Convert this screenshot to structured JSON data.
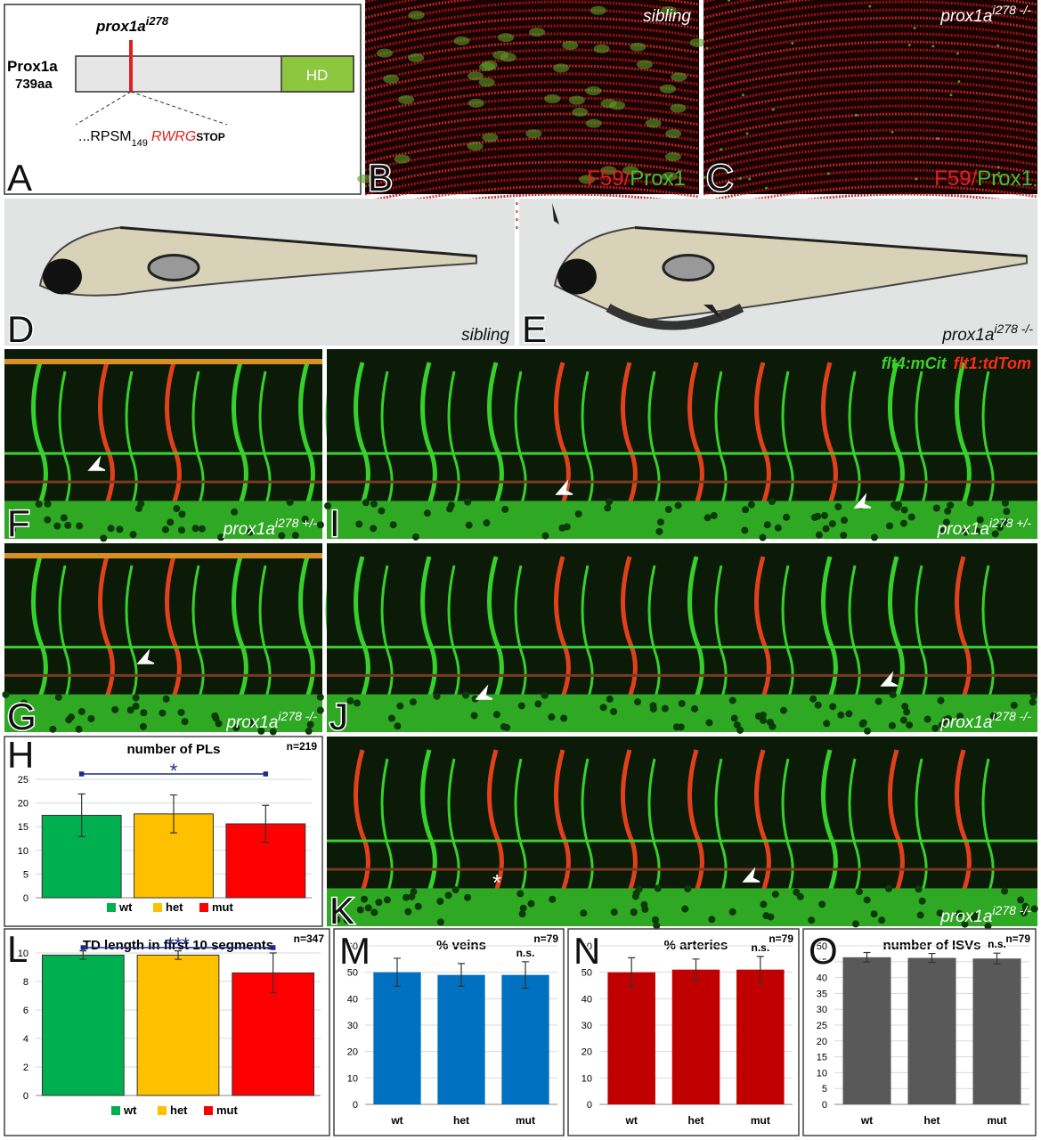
{
  "panel_labels": [
    "A",
    "B",
    "C",
    "D",
    "E",
    "F",
    "G",
    "H",
    "I",
    "J",
    "K",
    "L",
    "M",
    "N",
    "O"
  ],
  "panels": {
    "A": {
      "protein": "Prox1a",
      "length": "739aa",
      "allele": "prox1a",
      "allele_sup": "i278",
      "domain": "HD",
      "seq_prefix": "...RPSM",
      "seq_sub": "149",
      "seq_mut": "RWRG",
      "seq_stop": "STOP"
    },
    "B": {
      "caption": "sibling",
      "stain_red": "F59",
      "stain_sep": "/",
      "stain_green": "Prox1"
    },
    "C": {
      "caption": "prox1a",
      "caption_sup": "i278 -/-",
      "stain_red": "F59",
      "stain_sep": "/",
      "stain_green": "Prox1"
    },
    "D": {
      "caption": "sibling"
    },
    "E": {
      "caption": "prox1a",
      "caption_sup": "i278 -/-"
    },
    "F": {
      "caption": "prox1a",
      "caption_sup": "i278 +/-"
    },
    "G": {
      "caption": "prox1a",
      "caption_sup": "i278 -/-"
    },
    "I": {
      "caption": "prox1a",
      "caption_sup": "i278 +/-",
      "transgene_green": "flt4:mCit",
      "transgene_red": "flt1:tdTom"
    },
    "J": {
      "caption": "prox1a",
      "caption_sup": "i278 -/-"
    },
    "K": {
      "caption": "prox1a",
      "caption_sup": "i278 -/-",
      "marker": "*"
    }
  },
  "chart_data": [
    {
      "type": "bar",
      "title": "number of PLs",
      "n_label": "n=219",
      "significance": "*",
      "legend": true,
      "grid": true,
      "series": [
        {
          "name": "wt",
          "color": "#00b050",
          "values": [
            17.4
          ],
          "errors": [
            4.5
          ]
        },
        {
          "name": "het",
          "color": "#ffc000",
          "values": [
            17.7
          ],
          "errors": [
            4
          ]
        },
        {
          "name": "mut",
          "color": "#ff0000",
          "values": [
            15.6
          ],
          "errors": [
            3.9
          ]
        }
      ],
      "ylim": [
        0,
        25
      ],
      "yticks": [
        0,
        5,
        10,
        15,
        20,
        25
      ]
    },
    {
      "type": "bar",
      "title": "TD length in first 10 segments",
      "n_label": "n=347",
      "significance": "***",
      "legend": true,
      "grid": true,
      "series": [
        {
          "name": "wt",
          "color": "#00b050",
          "values": [
            9.85
          ],
          "errors": [
            0.3
          ]
        },
        {
          "name": "het",
          "color": "#ffc000",
          "values": [
            9.85
          ],
          "errors": [
            0.3
          ]
        },
        {
          "name": "mut",
          "color": "#ff0000",
          "values": [
            8.6
          ],
          "errors": [
            1.4
          ]
        }
      ],
      "ylim": [
        0,
        10
      ],
      "yticks": [
        0,
        2,
        4,
        6,
        8,
        10
      ]
    },
    {
      "type": "bar",
      "title": "% veins",
      "n_label": "n=79",
      "annotation": "n.s.",
      "grid": true,
      "color": "#0070c0",
      "categories": [
        "wt",
        "het",
        "mut"
      ],
      "values": [
        50,
        49,
        49
      ],
      "errors": [
        5.3,
        4.3,
        5
      ],
      "ylim": [
        0,
        60
      ],
      "yticks": [
        0,
        10,
        20,
        30,
        40,
        50,
        60
      ]
    },
    {
      "type": "bar",
      "title": "% arteries",
      "n_label": "n=79",
      "annotation": "n.s.",
      "grid": true,
      "color": "#c00000",
      "categories": [
        "wt",
        "het",
        "mut"
      ],
      "values": [
        50,
        51,
        51
      ],
      "errors": [
        5.5,
        4,
        5
      ],
      "ylim": [
        0,
        60
      ],
      "yticks": [
        0,
        10,
        20,
        30,
        40,
        50,
        60
      ]
    },
    {
      "type": "bar",
      "title": "number of ISVs",
      "n_label": "n=79",
      "annotation": "n.s.",
      "grid": true,
      "color": "#595959",
      "categories": [
        "wt",
        "het",
        "mut"
      ],
      "values": [
        46.4,
        46.2,
        46
      ],
      "errors": [
        1.5,
        1.4,
        1.7
      ],
      "ylim": [
        0,
        50
      ],
      "yticks": [
        0,
        5,
        10,
        15,
        20,
        25,
        30,
        35,
        40,
        45,
        50
      ]
    }
  ]
}
